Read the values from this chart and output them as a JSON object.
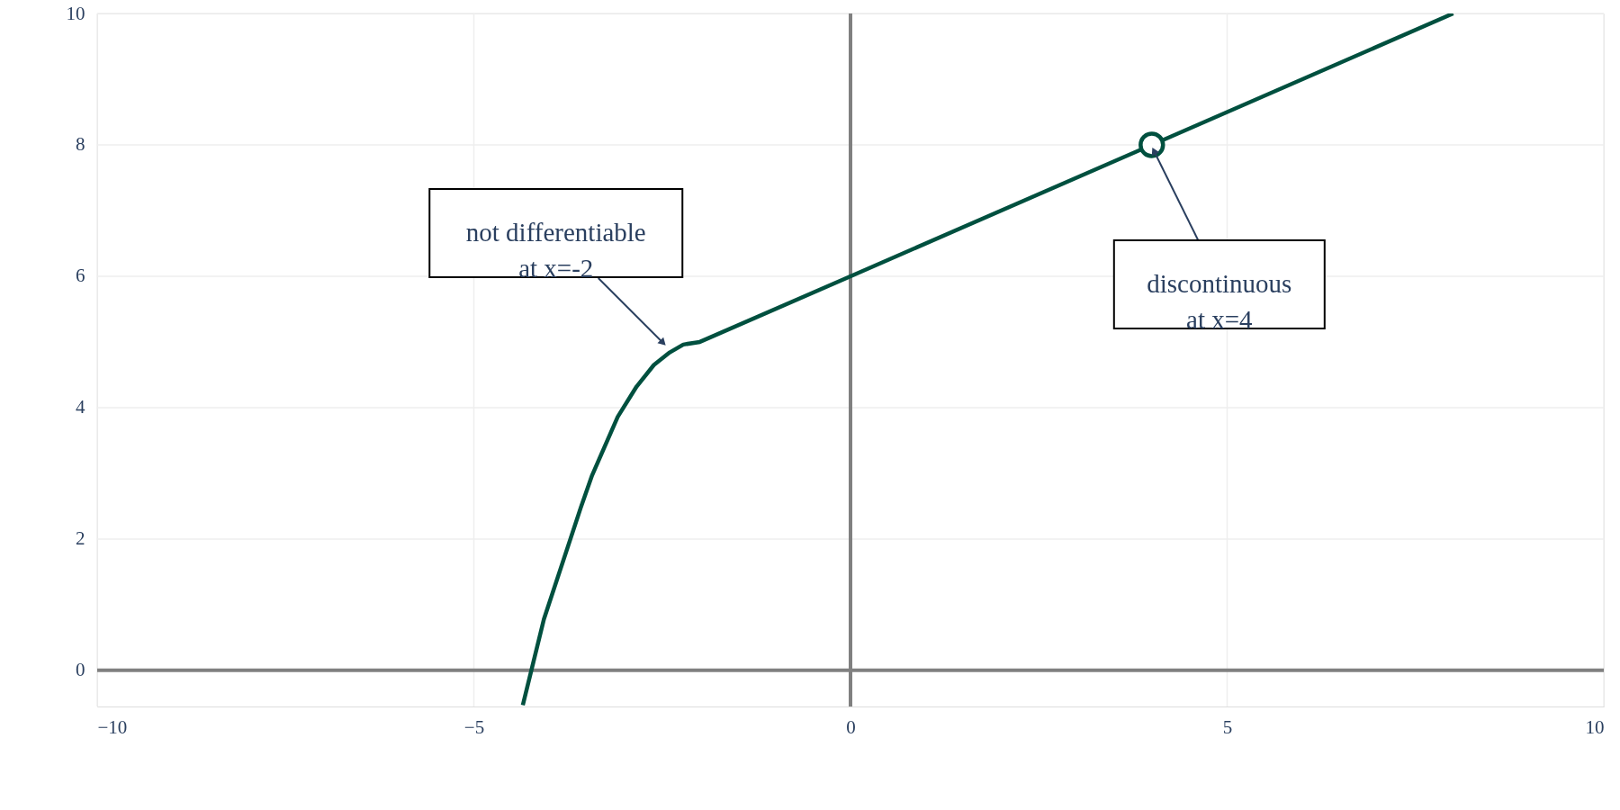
{
  "chart_data": {
    "type": "line",
    "xlim": [
      -10,
      10
    ],
    "ylim": [
      -0.55,
      10
    ],
    "xticks": [
      {
        "value": -10,
        "label": "−10"
      },
      {
        "value": -5,
        "label": "−5"
      },
      0,
      5,
      10
    ],
    "yticks": [
      0,
      2,
      4,
      6,
      8,
      10
    ],
    "grid": true,
    "series": [
      {
        "color": "#00503f",
        "x": [
          -4.35,
          -4.07,
          -3.58,
          -3.43,
          -3.09,
          -2.84,
          -2.61,
          -2.4,
          -2.22,
          -2.0,
          0,
          4,
          8
        ],
        "values": [
          -0.53,
          0.78,
          2.48,
          2.97,
          3.86,
          4.32,
          4.65,
          4.84,
          4.96,
          5.0,
          6,
          8,
          10
        ]
      },
      {
        "type": "scatter",
        "marker": "circle",
        "color": "#00503f",
        "x": [
          4
        ],
        "values": [
          8
        ]
      }
    ],
    "annotations": [
      {
        "text": "not differentiable\nat x=-2",
        "x": -2.5,
        "y": 5
      },
      {
        "text": "discontinuous\nat x=4",
        "x": 4,
        "y": 8
      }
    ]
  }
}
